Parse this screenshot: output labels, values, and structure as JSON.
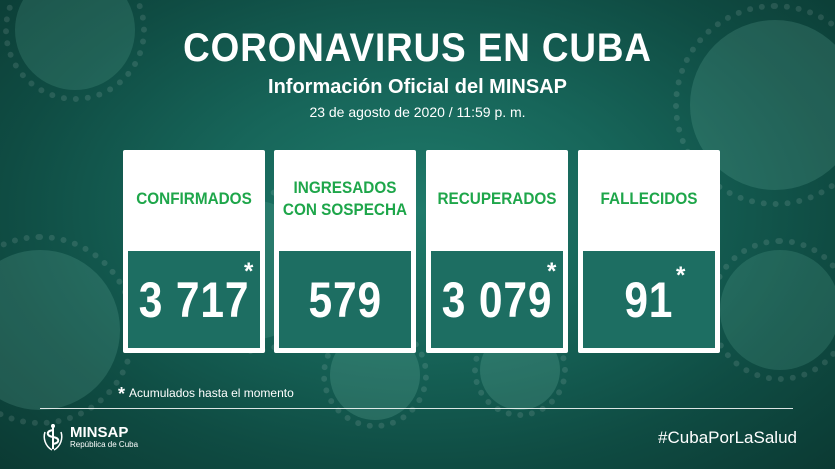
{
  "header": {
    "title": "CORONAVIRUS EN CUBA",
    "subtitle": "Información Oficial del MINSAP",
    "date": "23 de agosto de 2020 / 11:59 p. m."
  },
  "cards": [
    {
      "label": "CONFIRMADOS",
      "value": "3 717",
      "asterisk": "*"
    },
    {
      "label_line1": "INGRESADOS",
      "label_line2": "CON SOSPECHA",
      "value": "579"
    },
    {
      "label": "RECUPERADOS",
      "value": "3 079",
      "asterisk": "*"
    },
    {
      "label": "FALLECIDOS",
      "value": "91",
      "asterisk": "*"
    }
  ],
  "note": {
    "asterisk": "*",
    "text": "Acumulados hasta el momento"
  },
  "footer": {
    "logo_name": "MINSAP",
    "logo_sub": "República de Cuba",
    "hashtag": "#CubaPorLaSalud"
  },
  "colors": {
    "background": "#17665a",
    "card_label": "#1ea64a",
    "card_value_bg": "#1d6e62"
  },
  "icons": {
    "logo": "minsap-emblem-icon"
  }
}
